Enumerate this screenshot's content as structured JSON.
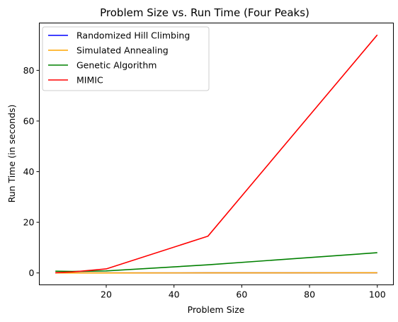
{
  "chart_data": {
    "type": "line",
    "title": "Problem Size vs. Run Time (Four Peaks)",
    "xlabel": "Problem Size",
    "ylabel": "Run Time (in seconds)",
    "xlim": [
      0.25,
      104.75
    ],
    "ylim": [
      -4.7,
      98.7
    ],
    "xticks": [
      20,
      40,
      60,
      80,
      100
    ],
    "yticks": [
      0,
      20,
      40,
      60,
      80
    ],
    "grid": false,
    "legend_position": "upper-left",
    "x": [
      5,
      10,
      20,
      50,
      100
    ],
    "series": [
      {
        "name": "Randomized Hill Climbing",
        "color": "#0000ff",
        "values": [
          0.0,
          0.0,
          0.01,
          0.02,
          0.05
        ]
      },
      {
        "name": "Simulated Annealing",
        "color": "#ffa500",
        "values": [
          0.0,
          0.0,
          0.01,
          0.02,
          0.06
        ]
      },
      {
        "name": "Genetic Algorithm",
        "color": "#008000",
        "values": [
          0.7,
          0.6,
          0.8,
          3.2,
          8.0
        ]
      },
      {
        "name": "MIMIC",
        "color": "#ff0000",
        "values": [
          0.1,
          0.4,
          1.6,
          14.5,
          94.0
        ]
      }
    ]
  }
}
